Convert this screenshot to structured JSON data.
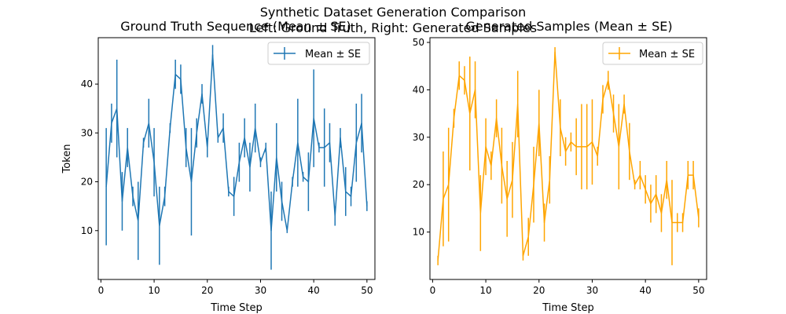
{
  "figure": {
    "title_line1": "Synthetic Dataset Generation Comparison",
    "title_line2": "Left: Ground Truth, Right: Generated Samples"
  },
  "chart_data": [
    {
      "type": "line",
      "title": "Ground Truth Sequence (Mean ± SE)",
      "xlabel": "Time Step",
      "ylabel": "Token",
      "xlim": [
        -0.5,
        51.5
      ],
      "ylim": [
        0,
        49.5
      ],
      "xticks": [
        0,
        10,
        20,
        30,
        40,
        50
      ],
      "yticks": [
        10,
        20,
        30,
        40
      ],
      "legend": "top-right",
      "color": "#1f77b4",
      "series": [
        {
          "name": "Mean ± SE",
          "x": [
            1,
            2,
            3,
            4,
            5,
            6,
            7,
            8,
            9,
            10,
            11,
            12,
            13,
            14,
            15,
            16,
            17,
            18,
            19,
            20,
            21,
            22,
            23,
            24,
            25,
            26,
            27,
            28,
            29,
            30,
            31,
            32,
            33,
            34,
            35,
            36,
            37,
            38,
            39,
            40,
            41,
            42,
            43,
            44,
            45,
            46,
            47,
            48,
            49,
            50
          ],
          "y": [
            19,
            32,
            35,
            16,
            27,
            17,
            12,
            28,
            32,
            24,
            11,
            17,
            31,
            42,
            41,
            27,
            20,
            30,
            38,
            27,
            46,
            29,
            31,
            18,
            17,
            24,
            29,
            23,
            31,
            24,
            27,
            10,
            25,
            16,
            10,
            20,
            28,
            21,
            20,
            33,
            27,
            27,
            28,
            13,
            29,
            18,
            17,
            28,
            32,
            15
          ],
          "err": [
            12,
            4,
            10,
            6,
            4,
            2,
            8,
            1,
            5,
            7,
            8,
            2,
            1,
            3,
            3,
            4,
            11,
            3,
            2,
            2,
            2,
            1,
            3,
            1,
            4,
            4,
            4,
            5,
            5,
            1,
            1,
            8,
            7,
            4,
            0.5,
            1,
            9,
            1,
            6,
            10,
            1,
            8,
            4,
            2,
            2,
            5,
            2,
            8,
            6,
            1
          ]
        }
      ]
    },
    {
      "type": "line",
      "title": "Generated Samples (Mean ± SE)",
      "xlabel": "Time Step",
      "ylabel": "",
      "xlim": [
        -0.5,
        51.5
      ],
      "ylim": [
        0,
        51
      ],
      "xticks": [
        0,
        10,
        20,
        30,
        40,
        50
      ],
      "yticks": [
        10,
        20,
        30,
        40,
        50
      ],
      "legend": "top-right",
      "color": "#ffa500",
      "series": [
        {
          "name": "Mean ± SE",
          "x": [
            1,
            2,
            3,
            4,
            5,
            6,
            7,
            8,
            9,
            10,
            11,
            12,
            13,
            14,
            15,
            16,
            17,
            18,
            19,
            20,
            21,
            22,
            23,
            24,
            25,
            26,
            27,
            28,
            29,
            30,
            31,
            32,
            33,
            34,
            35,
            36,
            37,
            38,
            39,
            40,
            41,
            42,
            43,
            44,
            45,
            46,
            47,
            48,
            49,
            50
          ],
          "y": [
            4,
            17,
            20,
            34,
            43,
            42,
            35,
            40,
            14,
            28,
            24,
            34,
            24,
            17,
            21,
            37,
            5,
            9,
            20,
            33,
            12,
            21,
            48,
            32,
            27,
            29,
            28,
            28,
            28,
            29,
            26,
            38,
            42,
            35,
            28,
            37,
            27,
            20,
            22,
            19,
            16,
            18,
            14,
            21,
            12,
            12,
            12,
            22,
            22,
            13
          ],
          "err": [
            1,
            10,
            12,
            2,
            3,
            3,
            12,
            6,
            8,
            6,
            3,
            4,
            8,
            8,
            8,
            7,
            1,
            4,
            8,
            7,
            4,
            5,
            1,
            6,
            3,
            2,
            6,
            9,
            9,
            9,
            2,
            3,
            2,
            4,
            9,
            2,
            6,
            1,
            3,
            3,
            4,
            4,
            4,
            4,
            9,
            2,
            2,
            3,
            3,
            2
          ]
        }
      ]
    }
  ]
}
